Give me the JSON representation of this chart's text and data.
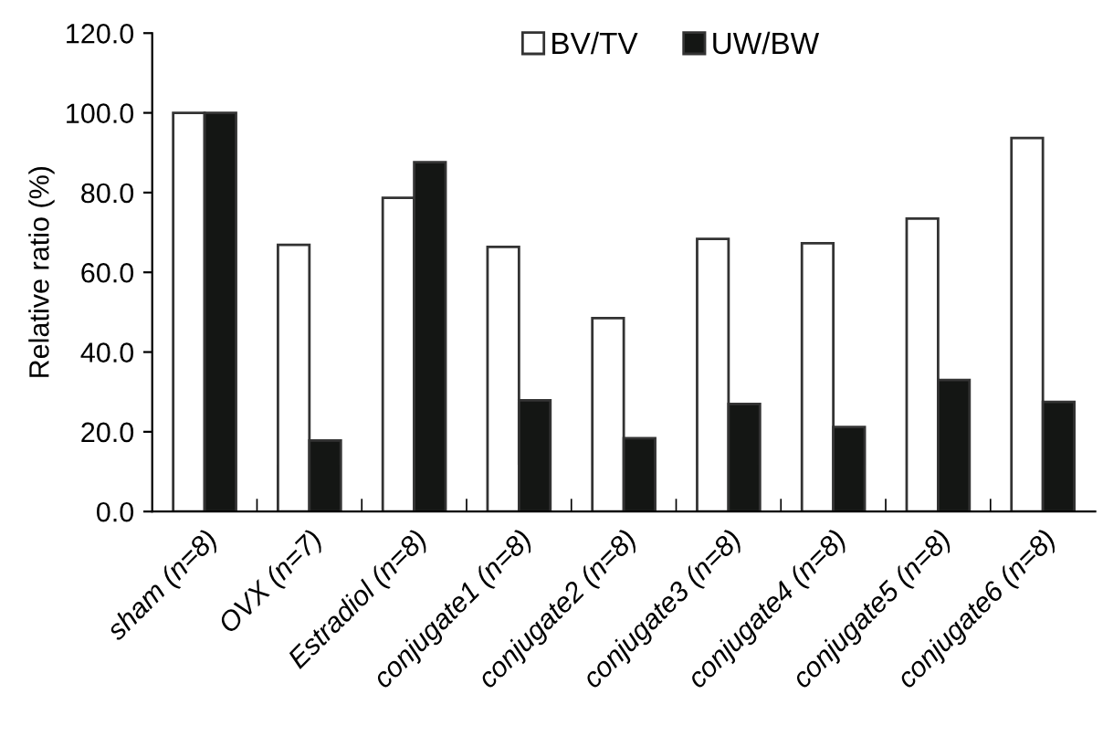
{
  "chart_data": {
    "type": "bar",
    "ylabel": "Relative ratio (%)",
    "categories": [
      "sham (n=8)",
      "OVX (n=7)",
      "Estradiol (n=8)",
      "conjugate1 (n=8)",
      "conjugate2 (n=8)",
      "conjugate3 (n=8)",
      "conjugate4 (n=8)",
      "conjugate5 (n=8)",
      "conjugate6 (n=8)"
    ],
    "series": [
      {
        "name": "BV/TV",
        "color": "#ffffff",
        "values": [
          100,
          66.9,
          78.7,
          66.4,
          48.5,
          68.4,
          67.3,
          73.5,
          93.7
        ]
      },
      {
        "name": "UW/BW",
        "color": "#141614",
        "values": [
          100,
          17.8,
          87.6,
          27.9,
          18.4,
          27.0,
          21.2,
          33.0,
          27.5
        ]
      }
    ],
    "ylim": [
      0,
      120
    ],
    "yticks": [
      {
        "value": 0,
        "label": "0.0"
      },
      {
        "value": 20,
        "label": "20.0"
      },
      {
        "value": 40,
        "label": "40.0"
      },
      {
        "value": 60,
        "label": "60.0"
      },
      {
        "value": 80,
        "label": "80.0"
      },
      {
        "value": 100,
        "label": "100.0"
      },
      {
        "value": 120,
        "label": "120.0"
      }
    ],
    "grid": false,
    "legend": "top"
  }
}
